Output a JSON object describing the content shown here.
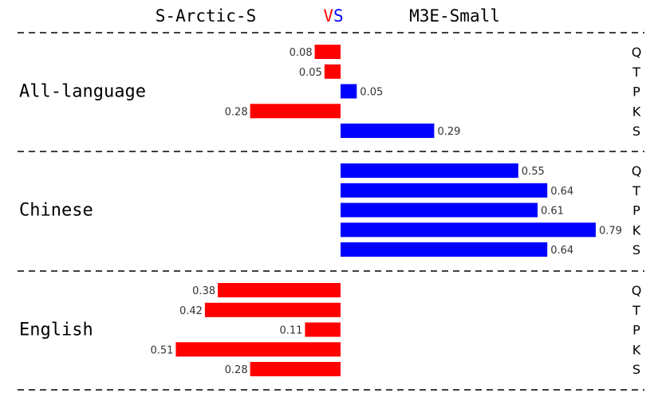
{
  "chart_data": {
    "type": "bar",
    "orientation": "horizontal-diverging",
    "title": {
      "left": "S-Arctic-S",
      "vs_v": "V",
      "vs_s": "S",
      "right": "M3E-Small"
    },
    "metrics": [
      "Q",
      "T",
      "P",
      "K",
      "S"
    ],
    "left_model": "S-Arctic-S",
    "right_model": "M3E-Small",
    "groups": [
      {
        "name": "All-language",
        "bars": [
          {
            "metric": "Q",
            "value": -0.08,
            "label": "0.08"
          },
          {
            "metric": "T",
            "value": -0.05,
            "label": "0.05"
          },
          {
            "metric": "P",
            "value": 0.05,
            "label": "0.05"
          },
          {
            "metric": "K",
            "value": -0.28,
            "label": "0.28"
          },
          {
            "metric": "S",
            "value": 0.29,
            "label": "0.29"
          }
        ]
      },
      {
        "name": "Chinese",
        "bars": [
          {
            "metric": "Q",
            "value": 0.55,
            "label": "0.55"
          },
          {
            "metric": "T",
            "value": 0.64,
            "label": "0.64"
          },
          {
            "metric": "P",
            "value": 0.61,
            "label": "0.61"
          },
          {
            "metric": "K",
            "value": 0.79,
            "label": "0.79"
          },
          {
            "metric": "S",
            "value": 0.64,
            "label": "0.64"
          }
        ]
      },
      {
        "name": "English",
        "bars": [
          {
            "metric": "Q",
            "value": -0.38,
            "label": "0.38"
          },
          {
            "metric": "T",
            "value": -0.42,
            "label": "0.42"
          },
          {
            "metric": "P",
            "value": -0.11,
            "label": "0.11"
          },
          {
            "metric": "K",
            "value": -0.51,
            "label": "0.51"
          },
          {
            "metric": "S",
            "value": -0.28,
            "label": "0.28"
          }
        ]
      }
    ],
    "colors": {
      "left": "#ff0000",
      "right": "#0000ff",
      "vs_v": "#ff0000",
      "vs_s": "#0000ff",
      "text": "#000000",
      "separator": "#000000",
      "label": "#333333"
    },
    "xlim": [
      -0.55,
      0.8
    ]
  }
}
